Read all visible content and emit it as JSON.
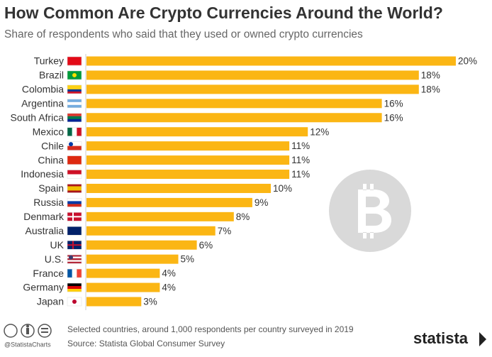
{
  "chart_data": {
    "type": "bar",
    "orientation": "horizontal",
    "title": "How Common Are Crypto Currencies Around the World?",
    "subtitle": "Share of respondents who said that they used or owned crypto currencies",
    "categories": [
      "Turkey",
      "Brazil",
      "Colombia",
      "Argentina",
      "South Africa",
      "Mexico",
      "Chile",
      "China",
      "Indonesia",
      "Spain",
      "Russia",
      "Denmark",
      "Australia",
      "UK",
      "U.S.",
      "France",
      "Germany",
      "Japan"
    ],
    "values": [
      20,
      18,
      18,
      16,
      16,
      12,
      11,
      11,
      11,
      10,
      9,
      8,
      7,
      6,
      5,
      4,
      4,
      3
    ],
    "value_labels": [
      "20%",
      "18%",
      "18%",
      "16%",
      "16%",
      "12%",
      "11%",
      "11%",
      "11%",
      "10%",
      "9%",
      "8%",
      "7%",
      "6%",
      "5%",
      "4%",
      "4%",
      "3%"
    ],
    "color": "#fbb614"
  },
  "footer": {
    "note": "Selected countries, around 1,000 respondents per country surveyed in 2019",
    "source": "Source: Statista Global Consumer Survey",
    "handle": "@StatistaCharts",
    "brand": "statista"
  }
}
